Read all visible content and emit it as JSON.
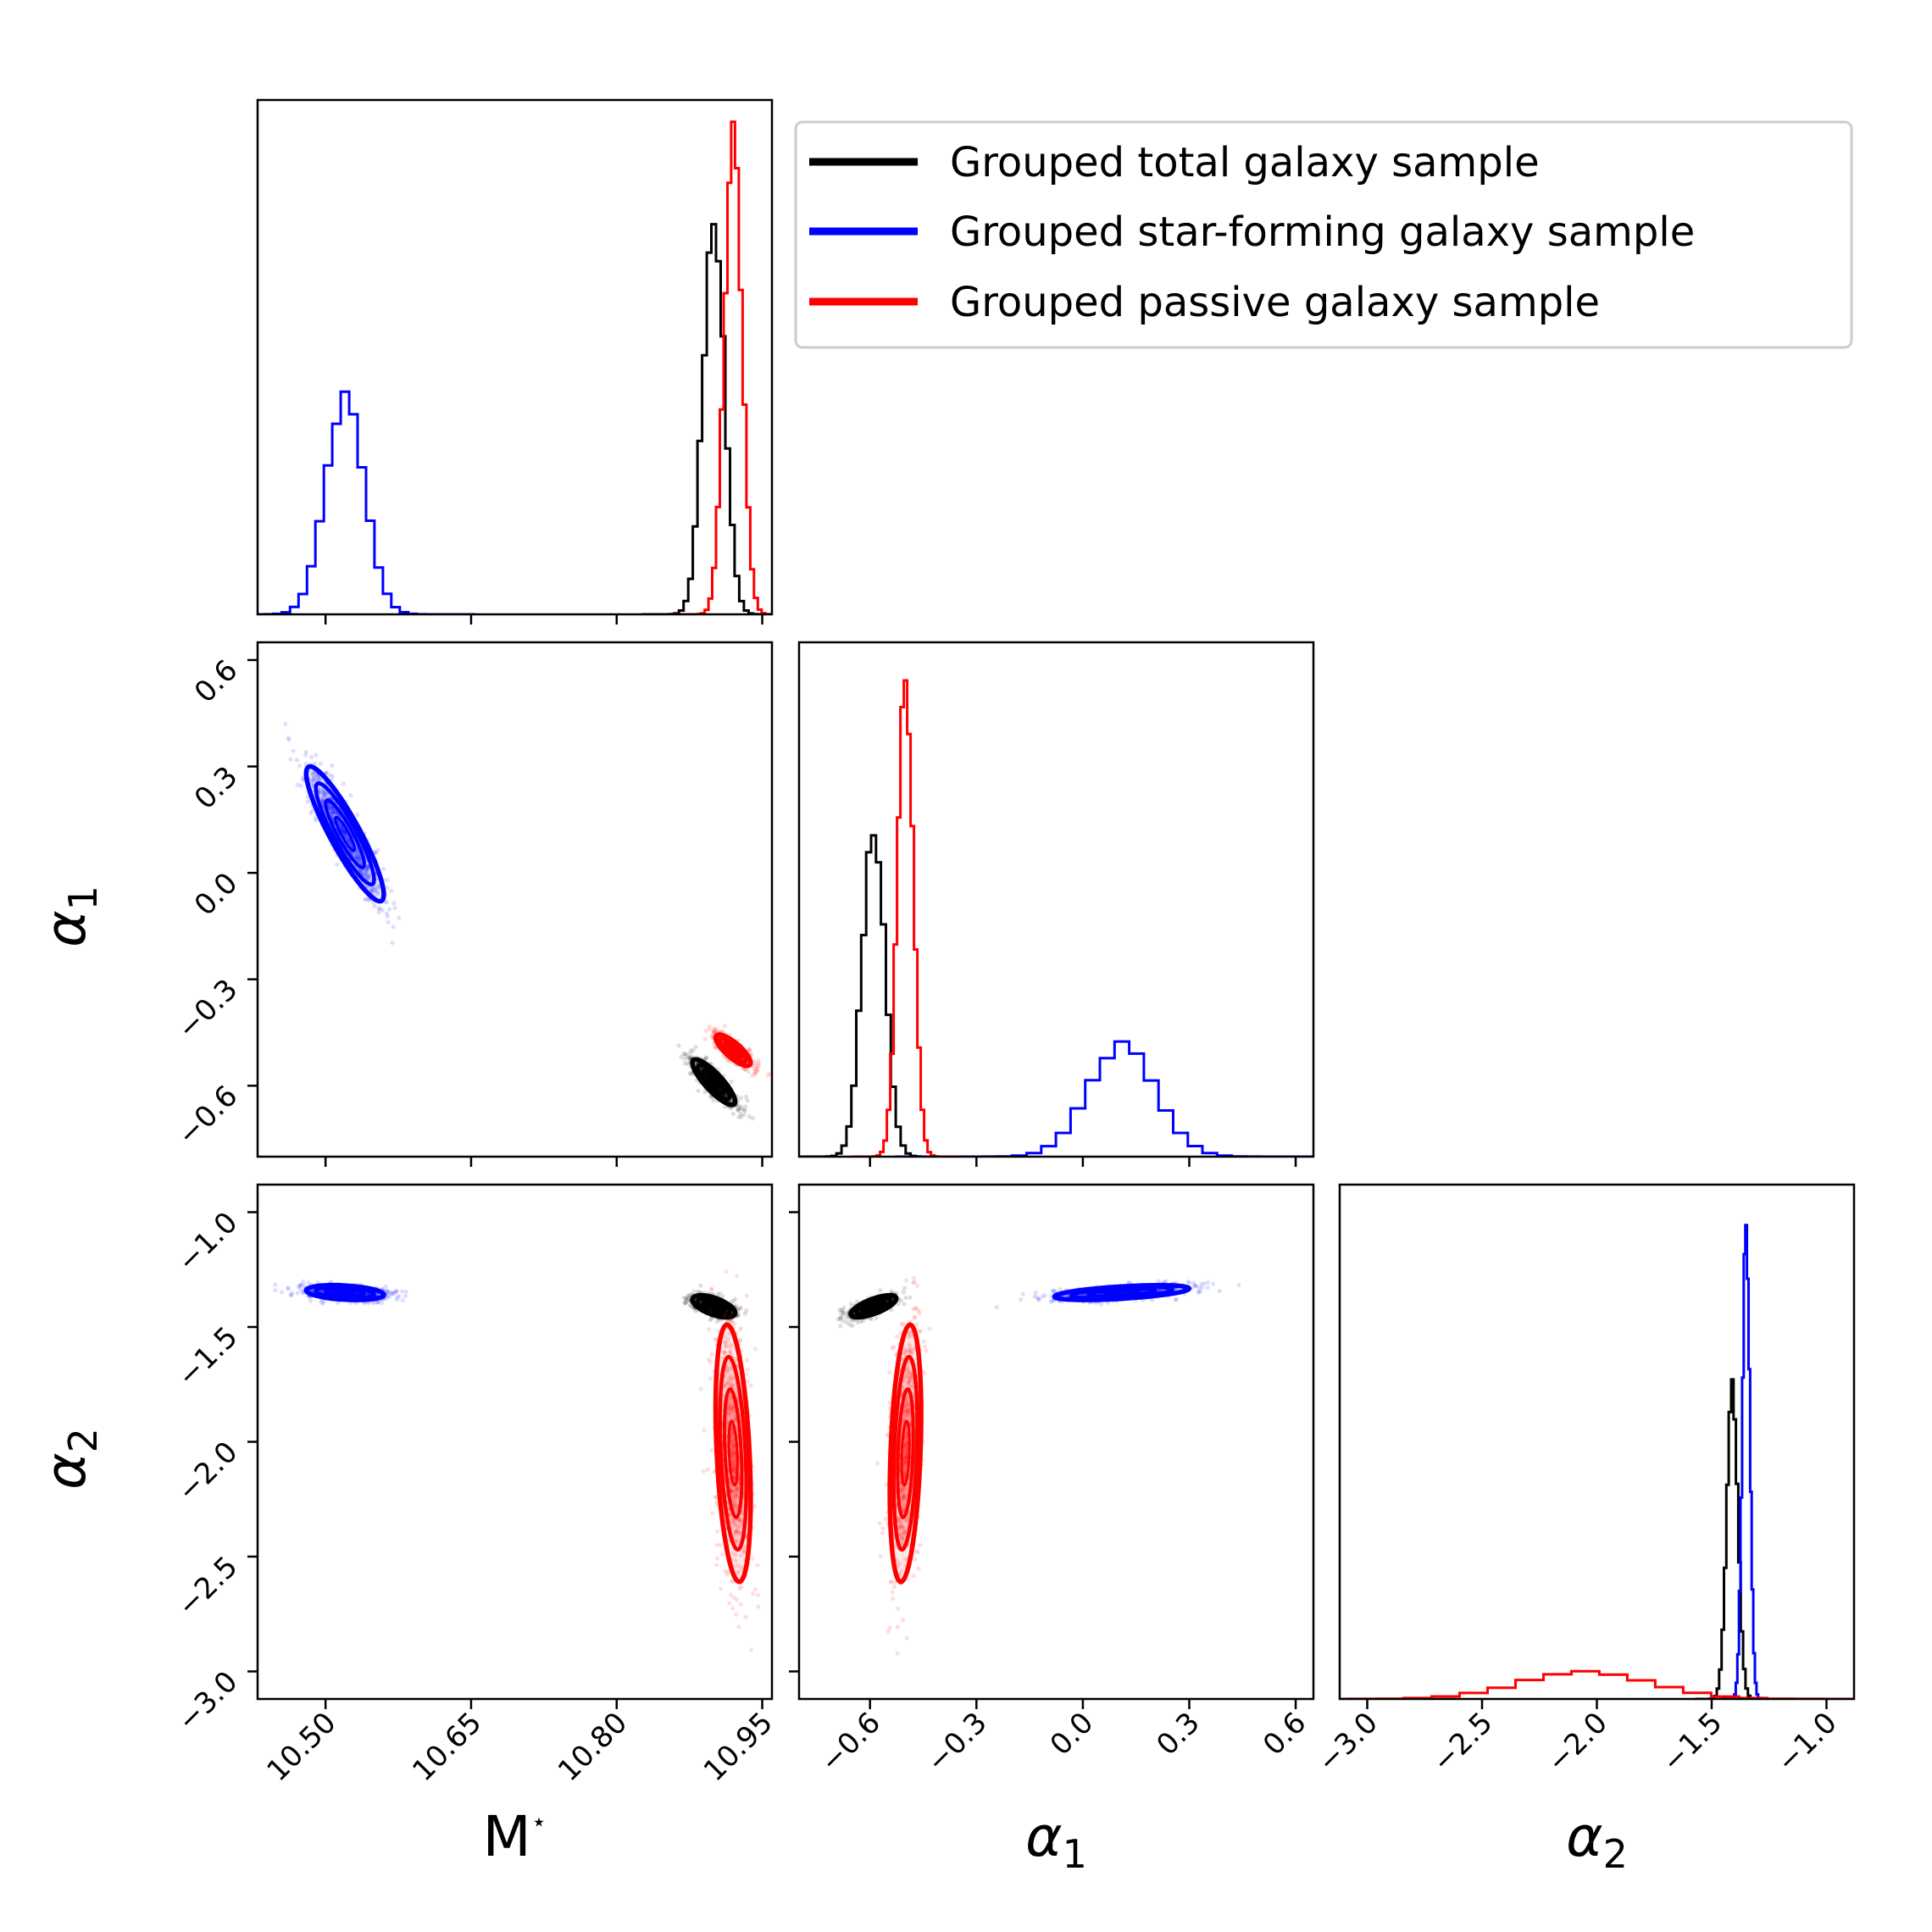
{
  "chart_data": {
    "type": "corner",
    "parameters": [
      {
        "key": "mstar",
        "label": "M",
        "label_sup": "⋆",
        "range": [
          10.43,
          10.96
        ],
        "ticks": [
          "10.50",
          "10.65",
          "10.80",
          "10.95"
        ],
        "tick_values": [
          10.5,
          10.65,
          10.8,
          10.95
        ]
      },
      {
        "key": "alpha1",
        "label": "α",
        "label_sub": "1",
        "range": [
          -0.8,
          0.65
        ],
        "ticks": [
          "−0.6",
          "−0.3",
          "0.0",
          "0.3",
          "0.6"
        ],
        "tick_values": [
          -0.6,
          -0.3,
          0.0,
          0.3,
          0.6
        ]
      },
      {
        "key": "alpha2",
        "label": "α",
        "label_sub": "2",
        "range": [
          -3.12,
          -0.88
        ],
        "ticks": [
          "−3.0",
          "−2.5",
          "−2.0",
          "−1.5",
          "−1.0"
        ],
        "tick_values": [
          -3.0,
          -2.5,
          -2.0,
          -1.5,
          -1.0
        ]
      }
    ],
    "legend": {
      "placement": "top-right",
      "entries": [
        {
          "name": "Grouped total galaxy sample",
          "color": "#000000"
        },
        {
          "name": "Grouped star-forming galaxy sample",
          "color": "#0000ff"
        },
        {
          "name": "Grouped passive galaxy sample",
          "color": "#ff0000"
        }
      ]
    },
    "series": [
      {
        "name": "Grouped total galaxy sample",
        "color": "#000000",
        "mean": {
          "mstar": 10.9,
          "alpha1": -0.59,
          "alpha2": -1.41
        },
        "sd": {
          "mstar": 0.011,
          "alpha1": 0.032,
          "alpha2": 0.024
        },
        "corr": {
          "mstar_alpha1": -0.85,
          "mstar_alpha2": -0.6,
          "alpha1_alpha2": 0.7
        }
      },
      {
        "name": "Grouped star-forming galaxy sample",
        "color": "#0000ff",
        "mean": {
          "mstar": 10.52,
          "alpha1": 0.11,
          "alpha2": -1.35
        },
        "sd": {
          "mstar": 0.02,
          "alpha1": 0.095,
          "alpha2": 0.016
        },
        "corr": {
          "mstar_alpha1": -0.9,
          "mstar_alpha2": -0.3,
          "alpha1_alpha2": 0.55
        }
      },
      {
        "name": "Grouped passive galaxy sample",
        "color": "#ff0000",
        "mean": {
          "mstar": 10.92,
          "alpha1": -0.5,
          "alpha2": -2.05
        },
        "sd": {
          "mstar": 0.009,
          "alpha1": 0.022,
          "alpha2": 0.28
        },
        "corr": {
          "mstar_alpha1": -0.8,
          "mstar_alpha2": -0.35,
          "alpha1_alpha2": 0.3
        }
      }
    ]
  }
}
